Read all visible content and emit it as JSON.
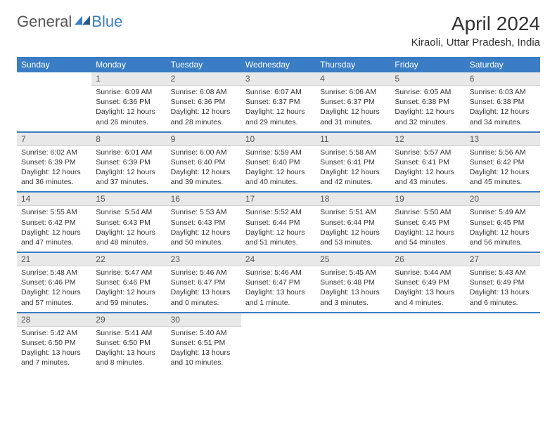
{
  "brand": {
    "part1": "General",
    "part2": "Blue"
  },
  "title": "April 2024",
  "location": "Kiraoli, Uttar Pradesh, India",
  "colors": {
    "header_bg": "#3a7dc4",
    "header_fg": "#ffffff",
    "daynum_bg": "#e8e8e8",
    "row_divider": "#3a7dc4",
    "text": "#333333",
    "logo_accent": "#3a7dc4"
  },
  "weekdays": [
    "Sunday",
    "Monday",
    "Tuesday",
    "Wednesday",
    "Thursday",
    "Friday",
    "Saturday"
  ],
  "weeks": [
    {
      "nums": [
        "",
        "1",
        "2",
        "3",
        "4",
        "5",
        "6"
      ],
      "cells": [
        null,
        {
          "sr": "Sunrise: 6:09 AM",
          "ss": "Sunset: 6:36 PM",
          "dl": "Daylight: 12 hours and 26 minutes."
        },
        {
          "sr": "Sunrise: 6:08 AM",
          "ss": "Sunset: 6:36 PM",
          "dl": "Daylight: 12 hours and 28 minutes."
        },
        {
          "sr": "Sunrise: 6:07 AM",
          "ss": "Sunset: 6:37 PM",
          "dl": "Daylight: 12 hours and 29 minutes."
        },
        {
          "sr": "Sunrise: 6:06 AM",
          "ss": "Sunset: 6:37 PM",
          "dl": "Daylight: 12 hours and 31 minutes."
        },
        {
          "sr": "Sunrise: 6:05 AM",
          "ss": "Sunset: 6:38 PM",
          "dl": "Daylight: 12 hours and 32 minutes."
        },
        {
          "sr": "Sunrise: 6:03 AM",
          "ss": "Sunset: 6:38 PM",
          "dl": "Daylight: 12 hours and 34 minutes."
        }
      ]
    },
    {
      "nums": [
        "7",
        "8",
        "9",
        "10",
        "11",
        "12",
        "13"
      ],
      "cells": [
        {
          "sr": "Sunrise: 6:02 AM",
          "ss": "Sunset: 6:39 PM",
          "dl": "Daylight: 12 hours and 36 minutes."
        },
        {
          "sr": "Sunrise: 6:01 AM",
          "ss": "Sunset: 6:39 PM",
          "dl": "Daylight: 12 hours and 37 minutes."
        },
        {
          "sr": "Sunrise: 6:00 AM",
          "ss": "Sunset: 6:40 PM",
          "dl": "Daylight: 12 hours and 39 minutes."
        },
        {
          "sr": "Sunrise: 5:59 AM",
          "ss": "Sunset: 6:40 PM",
          "dl": "Daylight: 12 hours and 40 minutes."
        },
        {
          "sr": "Sunrise: 5:58 AM",
          "ss": "Sunset: 6:41 PM",
          "dl": "Daylight: 12 hours and 42 minutes."
        },
        {
          "sr": "Sunrise: 5:57 AM",
          "ss": "Sunset: 6:41 PM",
          "dl": "Daylight: 12 hours and 43 minutes."
        },
        {
          "sr": "Sunrise: 5:56 AM",
          "ss": "Sunset: 6:42 PM",
          "dl": "Daylight: 12 hours and 45 minutes."
        }
      ]
    },
    {
      "nums": [
        "14",
        "15",
        "16",
        "17",
        "18",
        "19",
        "20"
      ],
      "cells": [
        {
          "sr": "Sunrise: 5:55 AM",
          "ss": "Sunset: 6:42 PM",
          "dl": "Daylight: 12 hours and 47 minutes."
        },
        {
          "sr": "Sunrise: 5:54 AM",
          "ss": "Sunset: 6:43 PM",
          "dl": "Daylight: 12 hours and 48 minutes."
        },
        {
          "sr": "Sunrise: 5:53 AM",
          "ss": "Sunset: 6:43 PM",
          "dl": "Daylight: 12 hours and 50 minutes."
        },
        {
          "sr": "Sunrise: 5:52 AM",
          "ss": "Sunset: 6:44 PM",
          "dl": "Daylight: 12 hours and 51 minutes."
        },
        {
          "sr": "Sunrise: 5:51 AM",
          "ss": "Sunset: 6:44 PM",
          "dl": "Daylight: 12 hours and 53 minutes."
        },
        {
          "sr": "Sunrise: 5:50 AM",
          "ss": "Sunset: 6:45 PM",
          "dl": "Daylight: 12 hours and 54 minutes."
        },
        {
          "sr": "Sunrise: 5:49 AM",
          "ss": "Sunset: 6:45 PM",
          "dl": "Daylight: 12 hours and 56 minutes."
        }
      ]
    },
    {
      "nums": [
        "21",
        "22",
        "23",
        "24",
        "25",
        "26",
        "27"
      ],
      "cells": [
        {
          "sr": "Sunrise: 5:48 AM",
          "ss": "Sunset: 6:46 PM",
          "dl": "Daylight: 12 hours and 57 minutes."
        },
        {
          "sr": "Sunrise: 5:47 AM",
          "ss": "Sunset: 6:46 PM",
          "dl": "Daylight: 12 hours and 59 minutes."
        },
        {
          "sr": "Sunrise: 5:46 AM",
          "ss": "Sunset: 6:47 PM",
          "dl": "Daylight: 13 hours and 0 minutes."
        },
        {
          "sr": "Sunrise: 5:46 AM",
          "ss": "Sunset: 6:47 PM",
          "dl": "Daylight: 13 hours and 1 minute."
        },
        {
          "sr": "Sunrise: 5:45 AM",
          "ss": "Sunset: 6:48 PM",
          "dl": "Daylight: 13 hours and 3 minutes."
        },
        {
          "sr": "Sunrise: 5:44 AM",
          "ss": "Sunset: 6:49 PM",
          "dl": "Daylight: 13 hours and 4 minutes."
        },
        {
          "sr": "Sunrise: 5:43 AM",
          "ss": "Sunset: 6:49 PM",
          "dl": "Daylight: 13 hours and 6 minutes."
        }
      ]
    },
    {
      "nums": [
        "28",
        "29",
        "30",
        "",
        "",
        "",
        ""
      ],
      "cells": [
        {
          "sr": "Sunrise: 5:42 AM",
          "ss": "Sunset: 6:50 PM",
          "dl": "Daylight: 13 hours and 7 minutes."
        },
        {
          "sr": "Sunrise: 5:41 AM",
          "ss": "Sunset: 6:50 PM",
          "dl": "Daylight: 13 hours and 8 minutes."
        },
        {
          "sr": "Sunrise: 5:40 AM",
          "ss": "Sunset: 6:51 PM",
          "dl": "Daylight: 13 hours and 10 minutes."
        },
        null,
        null,
        null,
        null
      ]
    }
  ]
}
